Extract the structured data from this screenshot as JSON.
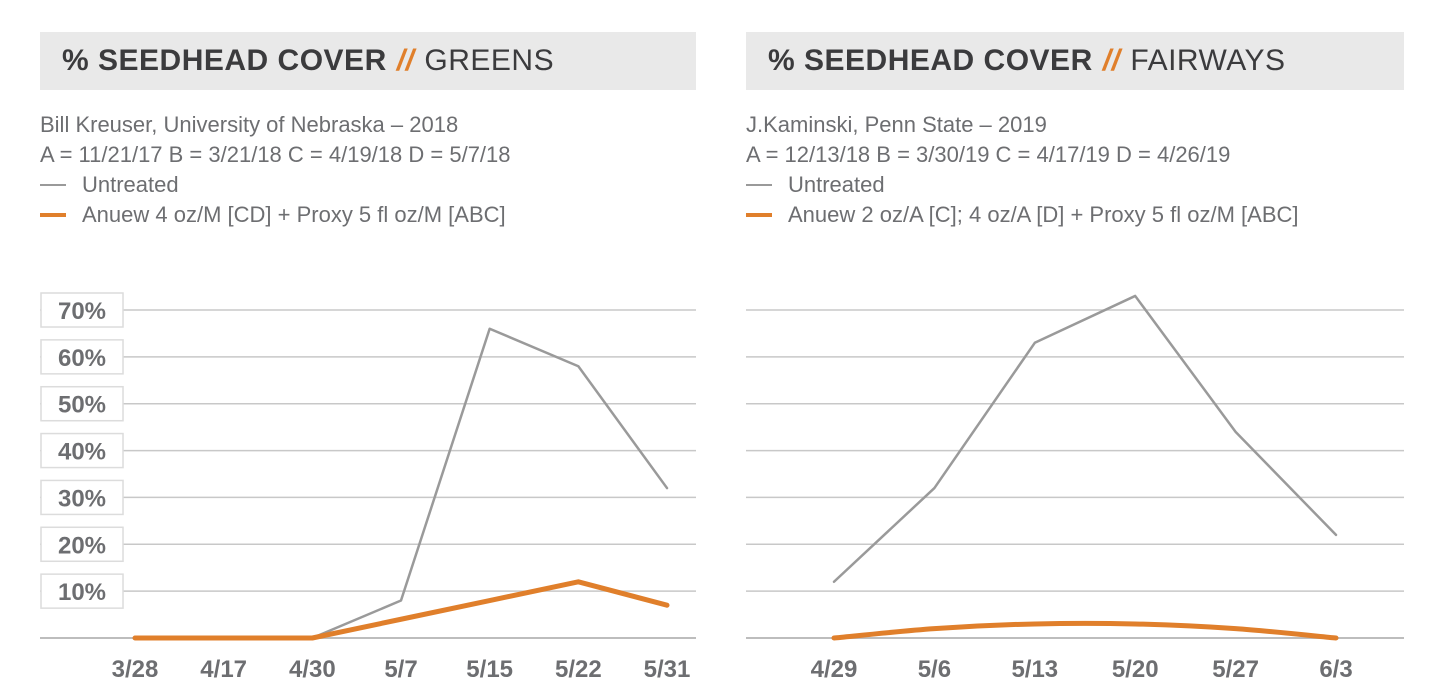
{
  "colors": {
    "untreated": "#9a9a9a",
    "treated": "#e07f2b",
    "accent": "#e07f2b",
    "banner_bg": "#e9e9e9",
    "grid": "#c8c8c8"
  },
  "charts": [
    {
      "banner": {
        "prefix": "% SEEDHEAD COVER",
        "separator": "//",
        "suffix": "GREENS"
      },
      "source": "Bill Kreuser, University of Nebraska – 2018",
      "dates_line": "A = 11/21/17  B = 3/21/18  C = 4/19/18  D = 5/7/18",
      "legend": [
        {
          "label": "Untreated"
        },
        {
          "label": "Anuew 4 oz/M [CD] + Proxy 5 fl oz/M [ABC]"
        }
      ]
    },
    {
      "banner": {
        "prefix": "% SEEDHEAD COVER",
        "separator": "//",
        "suffix": "FAIRWAYS"
      },
      "source": "J.Kaminski, Penn State – 2019",
      "dates_line": "A = 12/13/18  B = 3/30/19  C = 4/17/19  D = 4/26/19",
      "legend": [
        {
          "label": "Untreated"
        },
        {
          "label": "Anuew 2 oz/A [C]; 4 oz/A [D] + Proxy 5 fl oz/M [ABC]"
        }
      ]
    }
  ],
  "chart_data": [
    {
      "type": "line",
      "title": "% SEEDHEAD COVER // GREENS",
      "categories": [
        "3/28",
        "4/17",
        "4/30",
        "5/7",
        "5/15",
        "5/22",
        "5/31"
      ],
      "y_tick_labels": [
        "10%",
        "20%",
        "30%",
        "40%",
        "50%",
        "60%",
        "70%"
      ],
      "ylim": [
        0,
        70
      ],
      "grid": true,
      "series": [
        {
          "name": "Untreated",
          "values": [
            0,
            0,
            0,
            8,
            66,
            58,
            32
          ]
        },
        {
          "name": "Anuew 4 oz/M [CD] + Proxy 5 fl oz/M [ABC]",
          "values": [
            0,
            0,
            0,
            4,
            8,
            12,
            7
          ]
        }
      ]
    },
    {
      "type": "line",
      "title": "% SEEDHEAD COVER // FAIRWAYS",
      "categories": [
        "4/29",
        "5/6",
        "5/13",
        "5/20",
        "5/27",
        "6/3"
      ],
      "ylim": [
        0,
        70
      ],
      "grid": true,
      "series": [
        {
          "name": "Untreated",
          "values": [
            12,
            32,
            63,
            73,
            44,
            22
          ]
        },
        {
          "name": "Anuew 2 oz/A [C]; 4 oz/A [D] + Proxy 5 fl oz/M [ABC]",
          "values": [
            0,
            2,
            3,
            3,
            2,
            0
          ]
        }
      ]
    }
  ]
}
